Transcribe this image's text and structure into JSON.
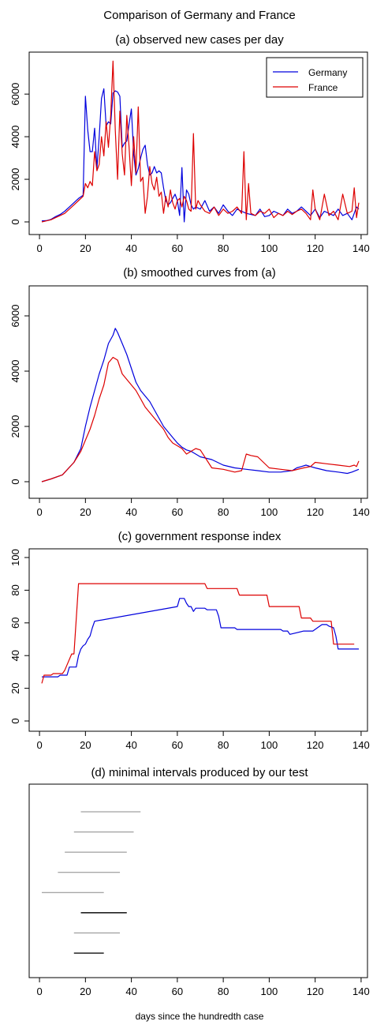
{
  "figure": {
    "title": "Comparison of Germany and France",
    "xlabel": "days since the hundredth case"
  },
  "colors": {
    "germany": "#0000dd",
    "france": "#dd0000",
    "intervals": "#888888",
    "intervals_dark": "#222222"
  },
  "chart_data": [
    {
      "type": "line",
      "title": "(a) observed new cases per day",
      "xlim": [
        1,
        139
      ],
      "ylim": [
        0,
        7600
      ],
      "xticks": [
        0,
        20,
        40,
        60,
        80,
        100,
        120,
        140
      ],
      "yticks": [
        0,
        2000,
        4000,
        6000
      ],
      "legend": {
        "position": "top-right",
        "entries": [
          "Germany",
          "France"
        ]
      },
      "series": [
        {
          "name": "Germany",
          "color": "#0000dd",
          "x": [
            1,
            3,
            5,
            7,
            9,
            11,
            13,
            15,
            17,
            19,
            20,
            21,
            22,
            23,
            24,
            25,
            26,
            27,
            28,
            29,
            30,
            31,
            32,
            33,
            34,
            35,
            36,
            37,
            38,
            39,
            40,
            41,
            42,
            43,
            44,
            45,
            46,
            47,
            48,
            49,
            50,
            51,
            52,
            53,
            54,
            55,
            56,
            57,
            58,
            59,
            60,
            61,
            62,
            63,
            64,
            65,
            66,
            67,
            68,
            70,
            72,
            74,
            76,
            78,
            80,
            82,
            84,
            86,
            88,
            90,
            92,
            94,
            96,
            98,
            100,
            102,
            104,
            106,
            108,
            110,
            112,
            114,
            116,
            118,
            120,
            122,
            124,
            126,
            128,
            130,
            132,
            134,
            136,
            138,
            139
          ],
          "y": [
            50,
            60,
            120,
            250,
            350,
            500,
            700,
            900,
            1100,
            1250,
            5900,
            4300,
            3300,
            3300,
            4400,
            2500,
            4000,
            5800,
            6250,
            4500,
            4700,
            4600,
            6050,
            6150,
            6100,
            5900,
            3500,
            3700,
            3800,
            4600,
            5300,
            3200,
            2200,
            2500,
            3000,
            3400,
            3600,
            2700,
            2200,
            2300,
            2600,
            2300,
            2400,
            2300,
            1600,
            1000,
            800,
            900,
            1100,
            1300,
            1000,
            300,
            2550,
            0,
            1500,
            1300,
            800,
            600,
            700,
            600,
            1000,
            500,
            700,
            400,
            800,
            500,
            300,
            600,
            500,
            400,
            350,
            300,
            600,
            250,
            300,
            500,
            400,
            300,
            600,
            400,
            500,
            700,
            500,
            300,
            600,
            200,
            500,
            400,
            300,
            600,
            300,
            400,
            100,
            700,
            600
          ]
        },
        {
          "name": "France",
          "color": "#dd0000",
          "x": [
            1,
            3,
            5,
            7,
            9,
            11,
            13,
            15,
            17,
            19,
            20,
            21,
            22,
            23,
            24,
            25,
            26,
            27,
            28,
            29,
            30,
            31,
            32,
            33,
            34,
            35,
            36,
            37,
            38,
            39,
            40,
            41,
            42,
            43,
            44,
            45,
            46,
            47,
            48,
            49,
            50,
            51,
            52,
            53,
            54,
            55,
            56,
            57,
            58,
            59,
            60,
            61,
            62,
            63,
            64,
            65,
            66,
            67,
            68,
            69,
            70,
            72,
            74,
            76,
            78,
            80,
            82,
            84,
            86,
            88,
            89,
            90,
            91,
            92,
            94,
            96,
            98,
            100,
            102,
            104,
            106,
            108,
            110,
            112,
            114,
            116,
            118,
            119,
            120,
            122,
            124,
            126,
            128,
            130,
            132,
            134,
            136,
            137,
            138,
            139
          ],
          "y": [
            0,
            50,
            100,
            200,
            300,
            400,
            600,
            800,
            1000,
            1200,
            1800,
            1600,
            1900,
            1700,
            3300,
            2400,
            2700,
            4000,
            3100,
            4700,
            3500,
            5000,
            7550,
            4300,
            2000,
            5200,
            3200,
            2200,
            5000,
            3500,
            1700,
            4000,
            2300,
            5400,
            1900,
            2100,
            400,
            1200,
            2600,
            1800,
            1500,
            2100,
            1200,
            1400,
            400,
            1200,
            700,
            1500,
            900,
            600,
            1000,
            1100,
            700,
            1200,
            1000,
            600,
            500,
            4150,
            600,
            1000,
            800,
            500,
            400,
            700,
            300,
            600,
            400,
            500,
            700,
            400,
            3300,
            100,
            1800,
            400,
            300,
            500,
            400,
            600,
            200,
            400,
            300,
            500,
            350,
            500,
            600,
            400,
            100,
            1500,
            600,
            100,
            1300,
            300,
            500,
            100,
            1300,
            400,
            500,
            1600,
            200,
            900
          ]
        }
      ]
    },
    {
      "type": "line",
      "title": "(b) smoothed curves from (a)",
      "xlim": [
        1,
        139
      ],
      "ylim": [
        0,
        6800
      ],
      "xticks": [
        0,
        20,
        40,
        60,
        80,
        100,
        120,
        140
      ],
      "yticks": [
        0,
        2000,
        4000,
        6000
      ],
      "series": [
        {
          "name": "Germany",
          "color": "#0000dd",
          "x": [
            1,
            5,
            10,
            15,
            18,
            20,
            22,
            24,
            26,
            28,
            30,
            32,
            33,
            34,
            36,
            38,
            40,
            42,
            44,
            46,
            48,
            50,
            52,
            54,
            56,
            58,
            60,
            62,
            64,
            66,
            68,
            70,
            75,
            80,
            85,
            90,
            95,
            100,
            105,
            110,
            112,
            114,
            116,
            118,
            120,
            125,
            130,
            134,
            136,
            139
          ],
          "y": [
            0,
            100,
            250,
            700,
            1200,
            2000,
            2700,
            3300,
            3900,
            4400,
            5000,
            5300,
            5550,
            5400,
            5000,
            4600,
            4100,
            3600,
            3300,
            3100,
            2900,
            2600,
            2300,
            2000,
            1800,
            1600,
            1400,
            1250,
            1150,
            1100,
            1000,
            900,
            800,
            600,
            500,
            450,
            400,
            350,
            350,
            400,
            500,
            550,
            600,
            550,
            500,
            400,
            350,
            300,
            350,
            450
          ]
        },
        {
          "name": "France",
          "color": "#dd0000",
          "x": [
            1,
            5,
            10,
            15,
            18,
            20,
            22,
            24,
            26,
            28,
            30,
            32,
            34,
            36,
            38,
            40,
            42,
            44,
            46,
            48,
            50,
            52,
            54,
            56,
            58,
            60,
            62,
            64,
            66,
            68,
            70,
            75,
            80,
            85,
            88,
            90,
            92,
            95,
            100,
            105,
            110,
            115,
            118,
            120,
            125,
            130,
            135,
            137,
            138,
            139
          ],
          "y": [
            0,
            100,
            250,
            700,
            1100,
            1500,
            1900,
            2400,
            3000,
            3500,
            4300,
            4500,
            4400,
            3900,
            3700,
            3500,
            3300,
            3000,
            2700,
            2500,
            2300,
            2100,
            1900,
            1600,
            1400,
            1300,
            1200,
            1000,
            1100,
            1200,
            1150,
            500,
            450,
            350,
            400,
            1000,
            950,
            900,
            500,
            450,
            400,
            500,
            550,
            700,
            650,
            600,
            550,
            600,
            550,
            750
          ]
        }
      ]
    },
    {
      "type": "line",
      "title": "(c) government response index",
      "xlim": [
        1,
        139
      ],
      "ylim": [
        0,
        100
      ],
      "xticks": [
        0,
        20,
        40,
        60,
        80,
        100,
        120,
        140
      ],
      "yticks": [
        0,
        20,
        40,
        60,
        80,
        100
      ],
      "series": [
        {
          "name": "Germany",
          "color": "#0000dd",
          "x": [
            1,
            2,
            8,
            9,
            12,
            13,
            14,
            15,
            16,
            17,
            18,
            19,
            20,
            21,
            22,
            23,
            24,
            60,
            61,
            63,
            64,
            65,
            66,
            67,
            68,
            72,
            73,
            77,
            78,
            79,
            80,
            85,
            86,
            98,
            99,
            105,
            106,
            108,
            109,
            115,
            116,
            118,
            119,
            122,
            123,
            125,
            126,
            128,
            129,
            130,
            139
          ],
          "y": [
            27,
            27,
            27,
            28,
            28,
            33,
            33,
            33,
            33,
            40,
            44,
            46,
            47,
            50,
            52,
            57,
            61,
            70,
            75,
            75,
            72,
            70,
            70,
            67,
            69,
            69,
            68,
            68,
            64,
            57,
            57,
            57,
            56,
            56,
            56,
            56,
            55,
            55,
            53,
            55,
            55,
            55,
            55,
            58,
            59,
            59,
            58,
            57,
            52,
            44,
            44
          ]
        },
        {
          "name": "France",
          "color": "#dd0000",
          "x": [
            1,
            2,
            5,
            6,
            10,
            11,
            14,
            15,
            17,
            72,
            73,
            75,
            86,
            87,
            99,
            100,
            113,
            114,
            118,
            119,
            127,
            128,
            135,
            136,
            137
          ],
          "y": [
            23,
            28,
            28,
            29,
            29,
            31,
            41,
            41,
            84,
            84,
            81,
            81,
            81,
            77,
            77,
            70,
            70,
            63,
            63,
            61,
            61,
            47,
            47,
            47,
            47
          ]
        }
      ]
    },
    {
      "type": "intervals",
      "title": "(d) minimal intervals produced by our test",
      "xlim": [
        1,
        139
      ],
      "xticks": [
        0,
        20,
        40,
        60,
        80,
        100,
        120,
        140
      ],
      "intervals": [
        {
          "start": 18,
          "end": 44,
          "emphasis": false
        },
        {
          "start": 15,
          "end": 41,
          "emphasis": false
        },
        {
          "start": 11,
          "end": 38,
          "emphasis": false
        },
        {
          "start": 8,
          "end": 35,
          "emphasis": false
        },
        {
          "start": 1,
          "end": 28,
          "emphasis": false
        },
        {
          "start": 18,
          "end": 38,
          "emphasis": true
        },
        {
          "start": 15,
          "end": 35,
          "emphasis": false
        },
        {
          "start": 15,
          "end": 28,
          "emphasis": true
        }
      ]
    }
  ]
}
